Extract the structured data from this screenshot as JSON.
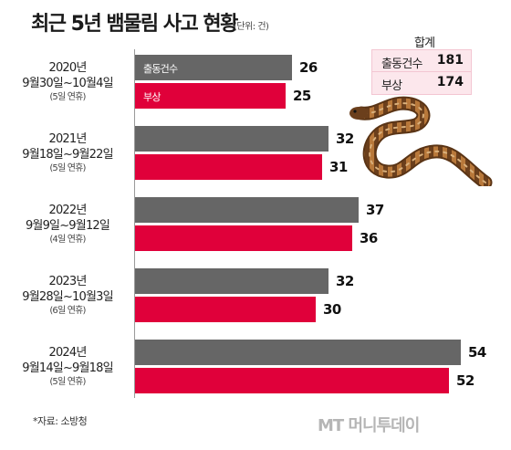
{
  "title": "최근 5년 뱀물림 사고 현황",
  "unit": "(단위: 건)",
  "legend": {
    "title": "합계",
    "rows": [
      {
        "label": "출동건수",
        "value": "181"
      },
      {
        "label": "부상",
        "value": "174"
      }
    ]
  },
  "bar_labels": {
    "dispatch": "출동건수",
    "injury": "부상"
  },
  "colors": {
    "dispatch": "#666666",
    "injury": "#e0003a",
    "legend_bg": "#fce7ec"
  },
  "source": "*자료: 소방청",
  "logo": "MT 머니투데이",
  "chart_data": {
    "type": "bar",
    "orientation": "horizontal",
    "title": "최근 5년 뱀물림 사고 현황",
    "categories": [
      {
        "year": "2020년",
        "period": "9월30일~10월4일",
        "days": "(5일 연휴)"
      },
      {
        "year": "2021년",
        "period": "9월18일~9월22일",
        "days": "(5일 연휴)"
      },
      {
        "year": "2022년",
        "period": "9월9일~9월12일",
        "days": "(4일 연휴)"
      },
      {
        "year": "2023년",
        "period": "9월28일~10월3일",
        "days": "(6일 연휴)"
      },
      {
        "year": "2024년",
        "period": "9월14일~9월18일",
        "days": "(5일 연휴)"
      }
    ],
    "series": [
      {
        "name": "출동건수",
        "values": [
          26,
          32,
          37,
          32,
          54
        ]
      },
      {
        "name": "부상",
        "values": [
          25,
          31,
          36,
          30,
          52
        ]
      }
    ],
    "xlim": [
      0,
      54
    ],
    "grid": false
  }
}
